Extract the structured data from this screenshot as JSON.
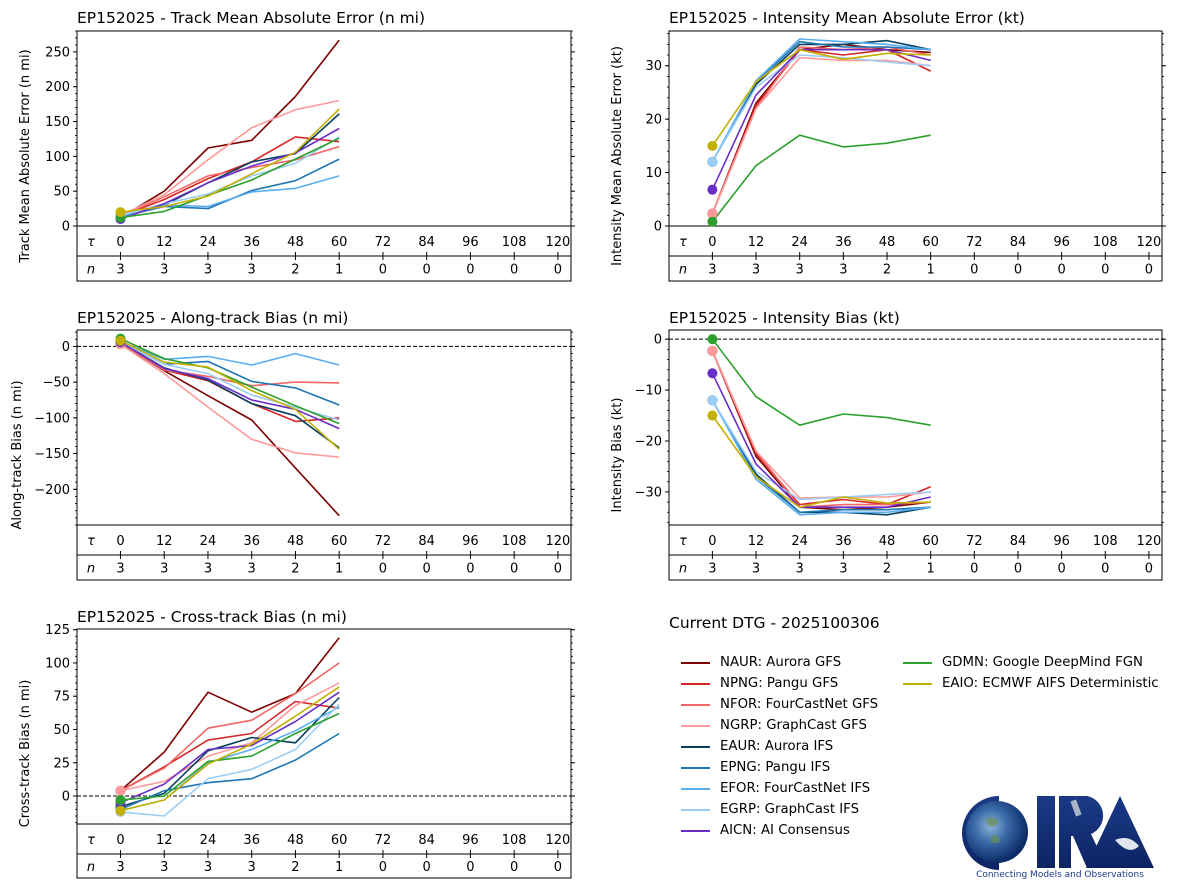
{
  "figure": {
    "legend_title": "Current DTG - 2025100306",
    "logo_text": "CIRA",
    "logo_tagline": "Connecting Models and Observations"
  },
  "models": [
    {
      "id": "NAUR",
      "label": "NAUR: Aurora GFS",
      "color": "#7f0000"
    },
    {
      "id": "NPNG",
      "label": "NPNG: Pangu GFS",
      "color": "#d62728"
    },
    {
      "id": "NFOR",
      "label": "NFOR: FourCastNet GFS",
      "color": "#f26666"
    },
    {
      "id": "NGRP",
      "label": "NGRP: GraphCast GFS",
      "color": "#ff9a9a"
    },
    {
      "id": "EAUR",
      "label": "EAUR: Aurora IFS",
      "color": "#08405e"
    },
    {
      "id": "EPNG",
      "label": "EPNG: Pangu IFS",
      "color": "#1f77b4"
    },
    {
      "id": "EFOR",
      "label": "EFOR: FourCastNet IFS",
      "color": "#5aaef0"
    },
    {
      "id": "EGRP",
      "label": "EGRP: GraphCast IFS",
      "color": "#9ccdf5"
    },
    {
      "id": "AICN",
      "label": "AICN: AI Consensus",
      "color": "#6a2ec8"
    },
    {
      "id": "GDMN",
      "label": "GDMN: Google DeepMind FGN",
      "color": "#2ca02c"
    },
    {
      "id": "EAIO",
      "label": "EAIO: ECMWF AIFS Deterministic",
      "color": "#c4b000"
    }
  ],
  "chart_data": [
    {
      "type": "line",
      "title": "EP152025 - Track Mean Absolute Error (n mi)",
      "ylabel": "Track Mean Absolute Error (n mi)",
      "xlabel": "",
      "x": [
        0,
        12,
        24,
        36,
        48,
        60
      ],
      "x_ticks": [
        "0",
        "12",
        "24",
        "36",
        "48",
        "60",
        "72",
        "84",
        "96",
        "108",
        "120"
      ],
      "tau_label": "τ",
      "n_label": "n",
      "n_values": [
        "3",
        "3",
        "3",
        "3",
        "2",
        "1",
        "0",
        "0",
        "0",
        "0",
        "0"
      ],
      "xlim": [
        0,
        120
      ],
      "ylim": [
        0,
        280
      ],
      "y_ticks": [
        0,
        50,
        100,
        150,
        200,
        250
      ],
      "y_minor_step": 10,
      "zero_line": false,
      "series": [
        {
          "name": "NAUR",
          "values": [
            12,
            50,
            112,
            123,
            186,
            267
          ]
        },
        {
          "name": "NPNG",
          "values": [
            14,
            38,
            68,
            92,
            128,
            121
          ]
        },
        {
          "name": "NFOR",
          "values": [
            14,
            42,
            72,
            84,
            95,
            114
          ]
        },
        {
          "name": "NGRP",
          "values": [
            15,
            45,
            95,
            141,
            167,
            180
          ]
        },
        {
          "name": "EAUR",
          "values": [
            12,
            30,
            62,
            92,
            104,
            161
          ]
        },
        {
          "name": "EPNG",
          "values": [
            13,
            28,
            25,
            51,
            65,
            96
          ]
        },
        {
          "name": "EFOR",
          "values": [
            14,
            30,
            28,
            49,
            54,
            72
          ]
        },
        {
          "name": "EGRP",
          "values": [
            15,
            32,
            46,
            72,
            90,
            128
          ]
        },
        {
          "name": "AICN",
          "values": [
            10,
            32,
            62,
            86,
            105,
            140
          ]
        },
        {
          "name": "GDMN",
          "values": [
            12,
            21,
            44,
            66,
            96,
            126
          ]
        },
        {
          "name": "EAIO",
          "values": [
            20,
            28,
            43,
            75,
            106,
            168
          ]
        }
      ]
    },
    {
      "type": "line",
      "title": "EP152025 - Intensity Mean Absolute Error (kt)",
      "ylabel": "Intensity Mean Absolute Error (kt)",
      "xlabel": "",
      "x": [
        0,
        12,
        24,
        36,
        48,
        60
      ],
      "x_ticks": [
        "0",
        "12",
        "24",
        "36",
        "48",
        "60",
        "72",
        "84",
        "96",
        "108",
        "120"
      ],
      "tau_label": "τ",
      "n_label": "n",
      "n_values": [
        "3",
        "3",
        "3",
        "3",
        "2",
        "1",
        "0",
        "0",
        "0",
        "0",
        "0"
      ],
      "xlim": [
        0,
        120
      ],
      "ylim": [
        0,
        36.5
      ],
      "y_ticks": [
        0,
        10,
        20,
        30
      ],
      "y_minor_step": 2,
      "zero_line": false,
      "series": [
        {
          "name": "NAUR",
          "values": [
            2.3,
            23,
            33,
            34,
            33,
            32.5
          ]
        },
        {
          "name": "NPNG",
          "values": [
            2.3,
            22.5,
            33,
            32,
            33,
            29
          ]
        },
        {
          "name": "NFOR",
          "values": [
            2.3,
            22,
            33.5,
            33,
            33.5,
            32
          ]
        },
        {
          "name": "NGRP",
          "values": [
            2.3,
            22,
            31.5,
            31,
            31,
            30
          ]
        },
        {
          "name": "EAUR",
          "values": [
            12,
            26.5,
            34,
            34,
            34.7,
            33
          ]
        },
        {
          "name": "EPNG",
          "values": [
            12,
            27,
            34.5,
            33.5,
            33.5,
            33
          ]
        },
        {
          "name": "EFOR",
          "values": [
            12,
            27.2,
            35,
            34.5,
            34,
            33
          ]
        },
        {
          "name": "EGRP",
          "values": [
            12,
            26,
            32,
            31.5,
            30.7,
            30
          ]
        },
        {
          "name": "AICN",
          "values": [
            6.8,
            24.5,
            33,
            33,
            33,
            31
          ]
        },
        {
          "name": "GDMN",
          "values": [
            0.8,
            11.3,
            17,
            14.8,
            15.5,
            17
          ]
        },
        {
          "name": "EAIO",
          "values": [
            15,
            27,
            33,
            31.2,
            32.3,
            32
          ]
        }
      ]
    },
    {
      "type": "line",
      "title": "EP152025 - Along-track Bias (n mi)",
      "ylabel": "Along-track Bias (n mi)",
      "xlabel": "",
      "x": [
        0,
        12,
        24,
        36,
        48,
        60
      ],
      "x_ticks": [
        "0",
        "12",
        "24",
        "36",
        "48",
        "60",
        "72",
        "84",
        "96",
        "108",
        "120"
      ],
      "tau_label": "τ",
      "n_label": "n",
      "n_values": [
        "3",
        "3",
        "3",
        "3",
        "2",
        "1",
        "0",
        "0",
        "0",
        "0",
        "0"
      ],
      "xlim": [
        0,
        120
      ],
      "ylim": [
        -250,
        23
      ],
      "y_ticks": [
        -200,
        -150,
        -100,
        -50,
        0
      ],
      "y_tick_labels": [
        "−200",
        "−150",
        "−100",
        "−50",
        "0"
      ],
      "y_minor_step": 10,
      "zero_line": true,
      "series": [
        {
          "name": "NAUR",
          "values": [
            5,
            -34,
            -69,
            -103,
            -170,
            -237
          ]
        },
        {
          "name": "NPNG",
          "values": [
            5,
            -33,
            -48,
            -80,
            -105,
            -100
          ]
        },
        {
          "name": "NFOR",
          "values": [
            5,
            -33,
            -42,
            -55,
            -50,
            -51
          ]
        },
        {
          "name": "NGRP",
          "values": [
            3,
            -38,
            -85,
            -130,
            -149,
            -155
          ]
        },
        {
          "name": "EAUR",
          "values": [
            6,
            -30,
            -47,
            -80,
            -97,
            -142
          ]
        },
        {
          "name": "EPNG",
          "values": [
            7,
            -25,
            -21,
            -49,
            -58,
            -82
          ]
        },
        {
          "name": "EFOR",
          "values": [
            7,
            -18,
            -14,
            -26,
            -10,
            -26
          ]
        },
        {
          "name": "EGRP",
          "values": [
            7,
            -25,
            -38,
            -68,
            -85,
            -103
          ]
        },
        {
          "name": "AICN",
          "values": [
            6,
            -31,
            -45,
            -75,
            -88,
            -115
          ]
        },
        {
          "name": "GDMN",
          "values": [
            11,
            -17,
            -30,
            -57,
            -83,
            -108
          ]
        },
        {
          "name": "EAIO",
          "values": [
            8,
            -22,
            -29,
            -62,
            -88,
            -144
          ]
        }
      ]
    },
    {
      "type": "line",
      "title": "EP152025 - Intensity Bias (kt)",
      "ylabel": "Intensity Bias (kt)",
      "xlabel": "",
      "x": [
        0,
        12,
        24,
        36,
        48,
        60
      ],
      "x_ticks": [
        "0",
        "12",
        "24",
        "36",
        "48",
        "60",
        "72",
        "84",
        "96",
        "108",
        "120"
      ],
      "tau_label": "τ",
      "n_label": "n",
      "n_values": [
        "3",
        "3",
        "3",
        "3",
        "2",
        "1",
        "0",
        "0",
        "0",
        "0",
        "0"
      ],
      "xlim": [
        0,
        120
      ],
      "ylim": [
        -36.5,
        1.8
      ],
      "y_ticks": [
        -30,
        -20,
        -10,
        0
      ],
      "y_tick_labels": [
        "−30",
        "−20",
        "−10",
        "0"
      ],
      "y_minor_step": 2,
      "zero_line": true,
      "series": [
        {
          "name": "NAUR",
          "values": [
            -2.3,
            -23,
            -33,
            -33.5,
            -33,
            -32
          ]
        },
        {
          "name": "NPNG",
          "values": [
            -2.3,
            -22.5,
            -32.5,
            -31.5,
            -32.5,
            -29
          ]
        },
        {
          "name": "NFOR",
          "values": [
            -2.3,
            -22,
            -33,
            -32.5,
            -32.5,
            -32
          ]
        },
        {
          "name": "NGRP",
          "values": [
            -2.3,
            -22,
            -31.2,
            -31,
            -31,
            -30
          ]
        },
        {
          "name": "EAUR",
          "values": [
            -12,
            -26.5,
            -34,
            -34,
            -34.5,
            -33
          ]
        },
        {
          "name": "EPNG",
          "values": [
            -12,
            -27,
            -34,
            -33.5,
            -33.5,
            -33
          ]
        },
        {
          "name": "EFOR",
          "values": [
            -12,
            -27.5,
            -34.5,
            -34,
            -34,
            -33
          ]
        },
        {
          "name": "EGRP",
          "values": [
            -12,
            -26,
            -31.5,
            -31,
            -30.5,
            -30
          ]
        },
        {
          "name": "AICN",
          "values": [
            -6.7,
            -24.5,
            -33,
            -33,
            -33,
            -31
          ]
        },
        {
          "name": "GDMN",
          "values": [
            0,
            -11.3,
            -16.9,
            -14.7,
            -15.4,
            -16.9
          ]
        },
        {
          "name": "EAIO",
          "values": [
            -15,
            -27,
            -33,
            -31,
            -32.2,
            -32
          ]
        }
      ]
    },
    {
      "type": "line",
      "title": "EP152025 - Cross-track Bias (n mi)",
      "ylabel": "Cross-track Bias (n mi)",
      "xlabel": "",
      "x": [
        0,
        12,
        24,
        36,
        48,
        60
      ],
      "x_ticks": [
        "0",
        "12",
        "24",
        "36",
        "48",
        "60",
        "72",
        "84",
        "96",
        "108",
        "120"
      ],
      "tau_label": "τ",
      "n_label": "n",
      "n_values": [
        "3",
        "3",
        "3",
        "3",
        "2",
        "1",
        "0",
        "0",
        "0",
        "0",
        "0"
      ],
      "xlim": [
        0,
        120
      ],
      "ylim": [
        -21,
        125.5
      ],
      "y_ticks": [
        0,
        25,
        50,
        75,
        100,
        125
      ],
      "y_minor_step": 5,
      "zero_line": true,
      "series": [
        {
          "name": "NAUR",
          "values": [
            4,
            33,
            78,
            63,
            77,
            119
          ]
        },
        {
          "name": "NPNG",
          "values": [
            4,
            22,
            42,
            47,
            71,
            66
          ]
        },
        {
          "name": "NFOR",
          "values": [
            4,
            21,
            51,
            57,
            77,
            100
          ]
        },
        {
          "name": "NGRP",
          "values": [
            4,
            11,
            30,
            40,
            68,
            85
          ]
        },
        {
          "name": "EAUR",
          "values": [
            -8,
            2,
            34,
            44,
            40,
            74
          ]
        },
        {
          "name": "EPNG",
          "values": [
            -10,
            4,
            10,
            13,
            27,
            47
          ]
        },
        {
          "name": "EFOR",
          "values": [
            -11,
            -3,
            25,
            35,
            49,
            67
          ]
        },
        {
          "name": "EGRP",
          "values": [
            -12,
            -15,
            13,
            20,
            35,
            69
          ]
        },
        {
          "name": "AICN",
          "values": [
            -5,
            9,
            35,
            38,
            56,
            78
          ]
        },
        {
          "name": "GDMN",
          "values": [
            -3,
            0,
            26,
            30,
            47,
            62
          ]
        },
        {
          "name": "EAIO",
          "values": [
            -11,
            -3,
            24,
            39,
            60,
            82
          ]
        }
      ]
    }
  ]
}
